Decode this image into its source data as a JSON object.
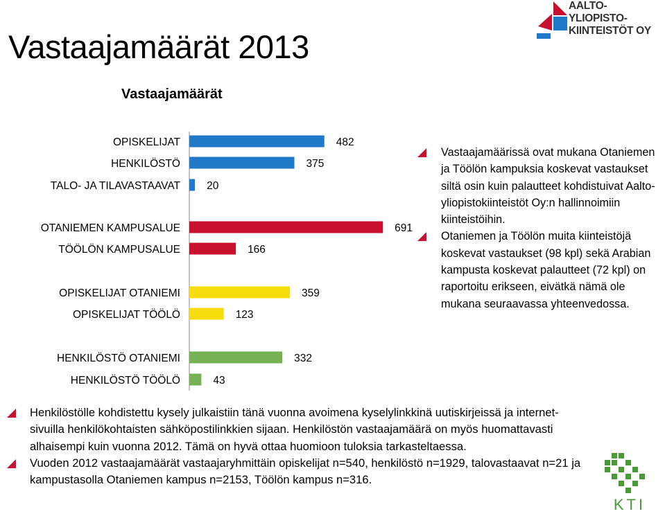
{
  "title": "Vastaajamäärät 2013",
  "chart_data": {
    "type": "bar",
    "orientation": "horizontal",
    "title": "Vastaajamäärät",
    "categories": [
      "OPISKELIJAT",
      "HENKILÖSTÖ",
      "TALO- JA TILAVASTAAVAT",
      "OTANIEMEN KAMPUSALUE",
      "TÖÖLÖN KAMPUSALUE",
      "OPISKELIJAT OTANIEMI",
      "OPISKELIJAT TÖÖLÖ",
      "HENKILÖSTÖ OTANIEMI",
      "HENKILÖSTÖ TÖÖLÖ"
    ],
    "values": [
      482,
      375,
      20,
      691,
      166,
      359,
      123,
      332,
      43
    ],
    "colors": [
      "#1f78c8",
      "#1f78c8",
      "#1f78c8",
      "#c8102e",
      "#c8102e",
      "#f5dc0a",
      "#f5dc0a",
      "#77b255",
      "#77b255"
    ],
    "xlim": [
      0,
      800
    ],
    "grid": false,
    "legend": "none"
  },
  "side_bullets": [
    "Vastaajamäärissä ovat mukana Otaniemen ja Töölön kampuksia koskevat vastaukset siltä osin kuin palautteet kohdistuivat Aalto-yliopistokiinteistöt Oy:n hallinnoimiin kiinteistöihin.",
    "Otaniemen ja Töölön muita kiinteistöjä koskevat  vastaukset (98 kpl) sekä Arabian kampusta koskevat palautteet (72 kpl) on raportoitu erikseen, eivätkä nämä ole mukana seuraavassa yhteenvedossa."
  ],
  "bottom_bullets": [
    "Henkilöstölle kohdistettu kysely julkaistiin tänä vuonna avoimena kyselylinkkinä uutiskirjeissä ja internet-sivuilla henkilökohtaisten sähköpostilinkkien sijaan. Henkilöstön vastaajamäärä on myös huomattavasti alhaisempi kuin vuonna 2012. Tämä on hyvä ottaa huomioon tuloksia tarkasteltaessa.",
    "Vuoden 2012 vastaajamäärät vastaajaryhmittäin opiskelijat n=540, henkilöstö n=1929, talovastaavat n=21 ja kampustasolla Otaniemen kampus n=2153, Töölön kampus n=316."
  ],
  "logo": {
    "line1": "AALTO-",
    "line2": "YLIOPISTO-",
    "line3": "KIINTEISTÖT OY",
    "kti": "KTI"
  },
  "accent_color": "#c8102e"
}
